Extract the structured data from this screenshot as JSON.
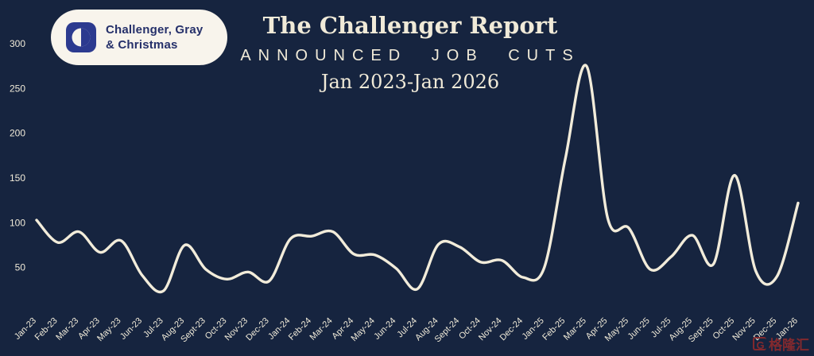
{
  "logo": {
    "line1": "Challenger, Gray",
    "line2": "& Christmas"
  },
  "watermark": {
    "text": "格隆汇",
    "mark": "G"
  },
  "colors": {
    "background": "#16243F",
    "line": "#F2ECDA",
    "text": "#F0EAD8",
    "logo_pill_bg": "#F8F4EC",
    "logo_blue": "#2C3A8F",
    "logo_navy": "#25306A",
    "watermark_red": "#8C2A2D"
  },
  "chart_data": {
    "type": "line",
    "title": "The Challenger Report",
    "subtitle": "ANNOUNCED JOB CUTS",
    "date_range": "Jan 2023-Jan 2026",
    "xlabel": "",
    "ylabel": "",
    "ylim": [
      0,
      300
    ],
    "yticks": [
      50,
      100,
      150,
      200,
      250,
      300
    ],
    "grid": false,
    "legend": false,
    "categories": [
      "Jan-23",
      "Feb-23",
      "Mar-23",
      "Apr-23",
      "May-23",
      "Jun-23",
      "Jul-23",
      "Aug-23",
      "Sept-23",
      "Oct-23",
      "Nov-23",
      "Dec-23",
      "Jan-24",
      "Feb-24",
      "Mar-24",
      "Apr-24",
      "May-24",
      "Jun-24",
      "Jul-24",
      "Aug-24",
      "Sept-24",
      "Oct-24",
      "Nov-24",
      "Dec-24",
      "Jan-25",
      "Feb-25",
      "Mar-25",
      "Apr-25",
      "May-25",
      "Jun-25",
      "Jul-25",
      "Aug-25",
      "Sept-25",
      "Oct-25",
      "Nov-25",
      "Dec-25",
      "Jan-26"
    ],
    "values": [
      103,
      78,
      90,
      67,
      80,
      41,
      24,
      75,
      48,
      37,
      45,
      35,
      82,
      85,
      90,
      65,
      64,
      49,
      26,
      76,
      73,
      56,
      58,
      39,
      50,
      172,
      275,
      105,
      94,
      48,
      62,
      86,
      54,
      153,
      46,
      40,
      122
    ]
  }
}
